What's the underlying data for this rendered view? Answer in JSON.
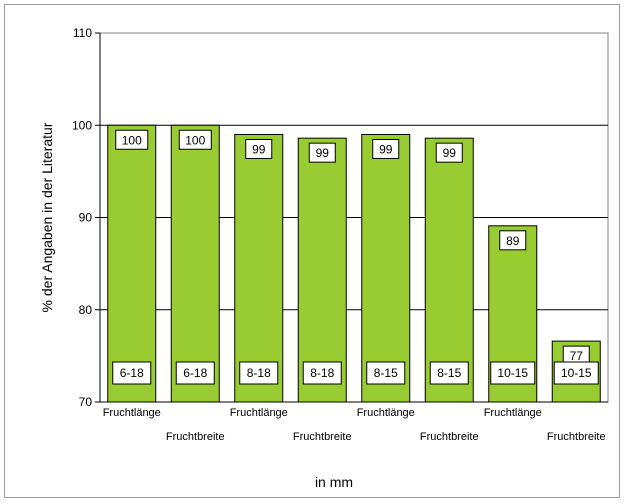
{
  "chart_data": {
    "type": "bar",
    "title": "",
    "ylabel": "% der Angaben in der Literatur",
    "xlabel": "in mm",
    "ylim": [
      70,
      110
    ],
    "yticks": [
      70,
      80,
      90,
      100,
      110
    ],
    "grid": true,
    "legend": "none",
    "bar_color": "#99cc33",
    "categories": [
      "Fruchtlänge",
      "Fruchtbreite",
      "Fruchtlänge",
      "Fruchtbreite",
      "Fruchtlänge",
      "Fruchtbreite",
      "Fruchtlänge",
      "Fruchtbreite"
    ],
    "values": [
      100,
      100,
      99,
      98.6,
      99,
      98.6,
      89.1,
      76.6
    ],
    "value_labels": [
      "100",
      "100",
      "99",
      "99",
      "99",
      "99",
      "89",
      "77"
    ],
    "range_labels": [
      "6-18",
      "6-18",
      "8-18",
      "8-18",
      "8-15",
      "8-15",
      "10-15",
      "10-15"
    ]
  }
}
